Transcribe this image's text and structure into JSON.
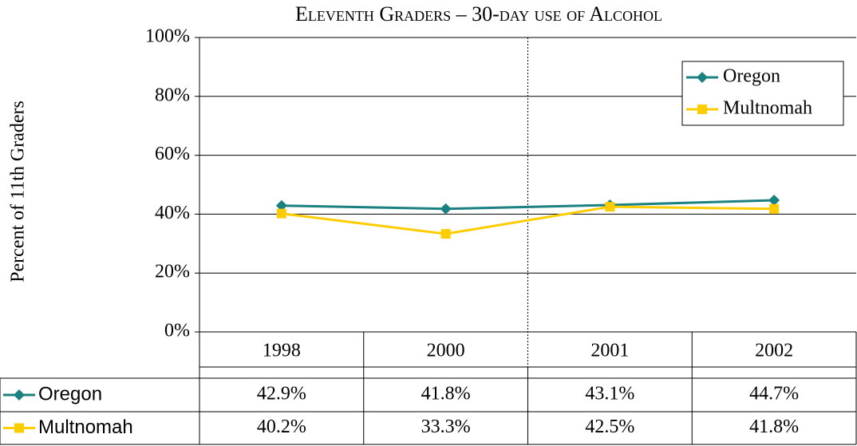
{
  "chart_data": {
    "type": "line",
    "title": "Eleventh Graders – 30-day use of Alcohol",
    "y_label": "Percent of 11th Graders",
    "categories": [
      "1998",
      "2000",
      "2001",
      "2002"
    ],
    "series": [
      {
        "name": "Oregon",
        "color": "#1a8080",
        "marker": "diamond",
        "values": [
          42.9,
          41.8,
          43.1,
          44.7
        ],
        "value_labels": [
          "42.9%",
          "41.8%",
          "43.1%",
          "44.7%"
        ]
      },
      {
        "name": "Multnomah",
        "color": "#ffcc00",
        "marker": "square",
        "values": [
          40.2,
          33.3,
          42.5,
          41.8
        ],
        "value_labels": [
          "40.2%",
          "33.3%",
          "42.5%",
          "41.8%"
        ]
      }
    ],
    "ylim": [
      0,
      100
    ],
    "yticks": [
      {
        "value": 0,
        "label": "0%"
      },
      {
        "value": 20,
        "label": "20%"
      },
      {
        "value": 40,
        "label": "40%"
      },
      {
        "value": 60,
        "label": "60%"
      },
      {
        "value": 80,
        "label": "80%"
      },
      {
        "value": 100,
        "label": "100%"
      }
    ],
    "grid": true,
    "legend": "top-right"
  }
}
